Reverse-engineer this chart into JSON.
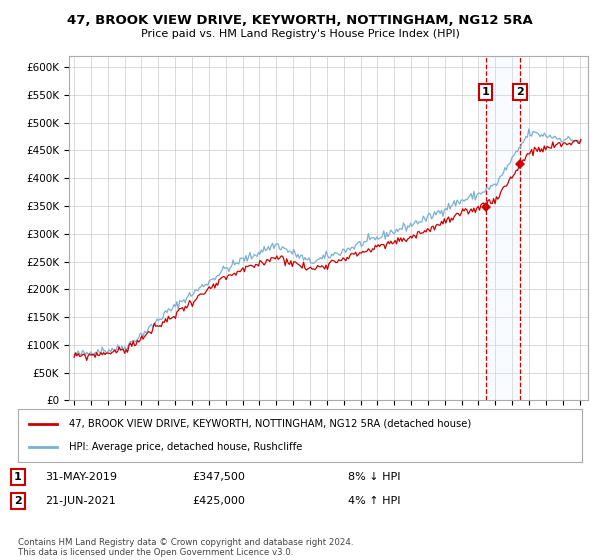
{
  "title_line1": "47, BROOK VIEW DRIVE, KEYWORTH, NOTTINGHAM, NG12 5RA",
  "title_line2": "Price paid vs. HM Land Registry's House Price Index (HPI)",
  "ylabel_ticks": [
    "£0",
    "£50K",
    "£100K",
    "£150K",
    "£200K",
    "£250K",
    "£300K",
    "£350K",
    "£400K",
    "£450K",
    "£500K",
    "£550K",
    "£600K"
  ],
  "ytick_values": [
    0,
    50000,
    100000,
    150000,
    200000,
    250000,
    300000,
    350000,
    400000,
    450000,
    500000,
    550000,
    600000
  ],
  "xlim_start": 1994.7,
  "xlim_end": 2025.5,
  "ylim_min": 0,
  "ylim_max": 620000,
  "purchase_dates": [
    2019.42,
    2021.47
  ],
  "purchase_prices": [
    347500,
    425000
  ],
  "purchase_labels": [
    "1",
    "2"
  ],
  "legend_line1": "47, BROOK VIEW DRIVE, KEYWORTH, NOTTINGHAM, NG12 5RA (detached house)",
  "legend_line2": "HPI: Average price, detached house, Rushcliffe",
  "annotation1_label": "1",
  "annotation1_date": "31-MAY-2019",
  "annotation1_price": "£347,500",
  "annotation1_pct": "8% ↓ HPI",
  "annotation2_label": "2",
  "annotation2_date": "21-JUN-2021",
  "annotation2_price": "£425,000",
  "annotation2_pct": "4% ↑ HPI",
  "footer": "Contains HM Land Registry data © Crown copyright and database right 2024.\nThis data is licensed under the Open Government Licence v3.0.",
  "line_color_property": "#cc0000",
  "line_color_hpi": "#7ab0d4",
  "background_color": "#ffffff",
  "grid_color": "#cccccc",
  "shade_color": "#ddeeff"
}
